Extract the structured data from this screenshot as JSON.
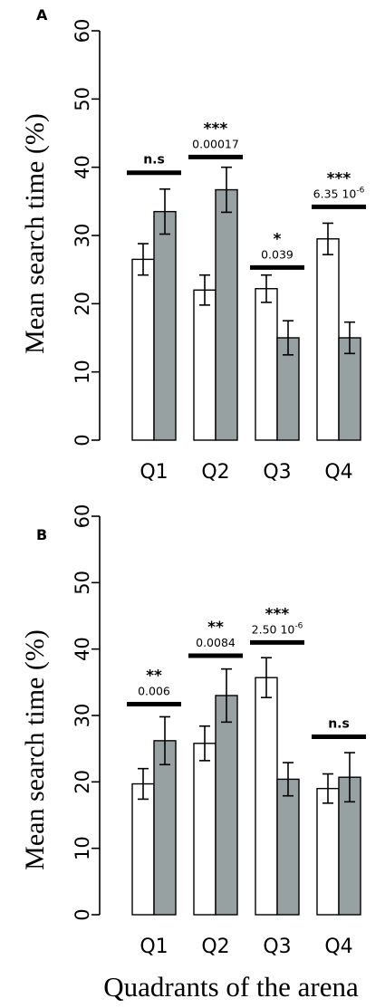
{
  "colors": {
    "bar_white": "#ffffff",
    "bar_grey": "#98a1a1",
    "stroke": "#000000"
  },
  "xlabel": "Quadrants of the arena",
  "chart_data": [
    {
      "panel": "A",
      "type": "bar",
      "ylabel": "Mean search time (%)",
      "ylim": [
        0,
        60
      ],
      "yticks": [
        0,
        10,
        20,
        30,
        40,
        50,
        60
      ],
      "categories": [
        "Q1",
        "Q2",
        "Q3",
        "Q4"
      ],
      "series": [
        {
          "color": "#ffffff",
          "values": [
            26.5,
            22.0,
            22.2,
            29.5
          ],
          "err": [
            2.3,
            2.2,
            2.0,
            2.3
          ]
        },
        {
          "color": "#98a1a1",
          "values": [
            33.5,
            36.7,
            15.0,
            15.0
          ],
          "err": [
            3.3,
            3.3,
            2.5,
            2.3
          ]
        }
      ],
      "annotations": [
        {
          "stars": "n.s",
          "p": "",
          "line_y": 39.2
        },
        {
          "stars": "***",
          "p": "0.00017",
          "line_y": 41.5
        },
        {
          "stars": "*",
          "p": "0.039",
          "line_y": 25.3
        },
        {
          "stars": "***",
          "p": "6.35 10",
          "exp": "-6",
          "line_y": 34.2
        }
      ]
    },
    {
      "panel": "B",
      "type": "bar",
      "ylabel": "Mean search time (%)",
      "ylim": [
        0,
        60
      ],
      "yticks": [
        0,
        10,
        20,
        30,
        40,
        50,
        60
      ],
      "categories": [
        "Q1",
        "Q2",
        "Q3",
        "Q4"
      ],
      "series": [
        {
          "color": "#ffffff",
          "values": [
            19.7,
            25.8,
            35.7,
            19.0
          ],
          "err": [
            2.3,
            2.6,
            3.0,
            2.2
          ]
        },
        {
          "color": "#98a1a1",
          "values": [
            26.2,
            33.0,
            20.4,
            20.7
          ],
          "err": [
            3.6,
            4.0,
            2.5,
            3.7
          ]
        }
      ],
      "annotations": [
        {
          "stars": "**",
          "p": "0.006",
          "line_y": 31.7
        },
        {
          "stars": "**",
          "p": "0.0084",
          "line_y": 39.0
        },
        {
          "stars": "***",
          "p": "2.50 10",
          "exp": "-6",
          "line_y": 41.0
        },
        {
          "stars": "n.s",
          "p": "",
          "line_y": 26.8
        }
      ]
    }
  ]
}
